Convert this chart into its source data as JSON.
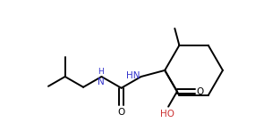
{
  "bg_color": "#ffffff",
  "line_color": "#000000",
  "label_hn": "HN",
  "label_hn2": "H\nN",
  "label_ho": "HO",
  "label_o": "O",
  "label_color_hn": "#3333cc",
  "label_color_o": "#000000",
  "label_color_ho": "#cc3333",
  "line_width": 1.4,
  "font_size": 7.5,
  "figsize": [
    2.85,
    1.47
  ],
  "dpi": 100
}
